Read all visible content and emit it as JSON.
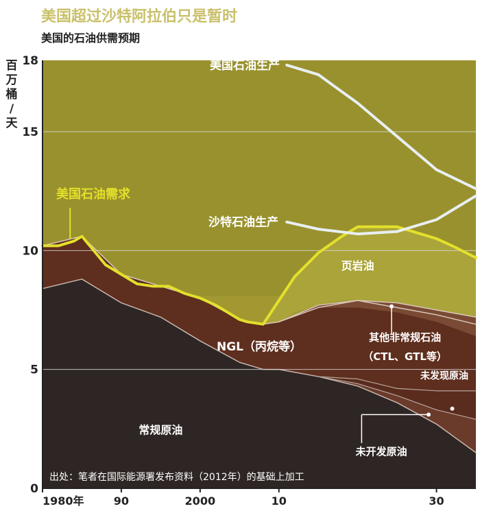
{
  "title": "美国超过沙特阿拉伯只是暂时",
  "subtitle": "美国的石油供需预期",
  "colors": {
    "demand": "#e3e02c",
    "shale": "#aaa43a",
    "ngl": "#5e2e1e",
    "crude": "#2e2624",
    "production_line": "#e8eef2",
    "gridline": "#d8d8d8"
  },
  "chart_data": {
    "type": "area",
    "title": "美国超过沙特阿拉伯只是暂时",
    "subtitle": "美国的石油供需预期",
    "ylabel": "百万桶/天",
    "xlabel": "",
    "xlim": [
      1980,
      2035
    ],
    "ylim": [
      0,
      18
    ],
    "y_ticks": [
      0,
      5,
      10,
      15,
      18
    ],
    "x_ticks": [
      {
        "value": 1980,
        "label": "1980年"
      },
      {
        "value": 1990,
        "label": "90"
      },
      {
        "value": 2000,
        "label": "2000"
      },
      {
        "value": 2010,
        "label": "10"
      },
      {
        "value": 2030,
        "label": "30"
      }
    ],
    "grid": true,
    "source": "出处：笔者在国际能源署发布资料（2012年）的基础上加工",
    "series": [
      {
        "name": "美国石油需求",
        "type": "line",
        "x": [
          1980,
          1982,
          1984,
          1985,
          1986,
          1988,
          1990,
          1992,
          1994,
          1996,
          1998,
          2000,
          2002,
          2004,
          2005,
          2006,
          2008,
          2010,
          2012,
          2015,
          2018,
          2020,
          2022,
          2025,
          2028,
          2030,
          2032,
          2035
        ],
        "values": [
          10.2,
          10.2,
          10.4,
          10.6,
          10.2,
          9.4,
          9.0,
          8.6,
          8.5,
          8.5,
          8.2,
          8.0,
          7.7,
          7.3,
          7.1,
          7.0,
          6.9,
          7.9,
          8.9,
          9.9,
          10.6,
          11.0,
          11.0,
          11.0,
          10.7,
          10.5,
          10.2,
          9.7
        ]
      },
      {
        "name": "美国石油生产",
        "type": "line",
        "x": [
          2011,
          2015,
          2020,
          2025,
          2030,
          2035
        ],
        "values": [
          17.8,
          17.4,
          16.2,
          14.8,
          13.4,
          12.6
        ]
      },
      {
        "name": "沙特石油生产",
        "type": "line",
        "x": [
          2011,
          2015,
          2020,
          2025,
          2030,
          2035
        ],
        "values": [
          11.2,
          10.9,
          10.7,
          10.8,
          11.3,
          12.3
        ]
      },
      {
        "name": "页岩油",
        "type": "area",
        "x": [
          2008,
          2010,
          2012,
          2015,
          2018,
          2020,
          2022,
          2025,
          2028,
          2030,
          2032,
          2035
        ],
        "lower": [
          6.9,
          7.0,
          7.4,
          7.7,
          7.9,
          7.9,
          7.8,
          7.5,
          7.4,
          7.3,
          7.1,
          6.9
        ],
        "upper": [
          6.9,
          7.9,
          8.9,
          9.9,
          10.6,
          11.0,
          11.0,
          11.0,
          10.7,
          10.5,
          10.2,
          9.7
        ]
      },
      {
        "name": "NGL（丙烷等）",
        "type": "area",
        "x": [
          1980,
          1985,
          1990,
          1995,
          2000,
          2005,
          2008,
          2010,
          2015,
          2020,
          2025,
          2030,
          2035
        ],
        "lower": [
          8.4,
          8.8,
          7.8,
          7.2,
          6.2,
          5.3,
          5.0,
          5.0,
          4.7,
          4.6,
          4.1,
          3.2,
          1.7
        ],
        "upper": [
          10.2,
          10.6,
          9.0,
          8.5,
          8.0,
          7.1,
          6.9,
          7.0,
          7.6,
          7.9,
          7.6,
          7.3,
          6.9
        ]
      },
      {
        "name": "其他非常规石油（CTL、GTL等）",
        "type": "area",
        "x": [
          2010,
          2015,
          2020,
          2025,
          2030,
          2035
        ],
        "lower": [
          7.0,
          7.6,
          7.6,
          7.4,
          7.0,
          6.4
        ],
        "upper": [
          7.0,
          7.7,
          7.9,
          7.8,
          7.5,
          7.2
        ]
      },
      {
        "name": "未发现原油",
        "type": "area",
        "x": [
          2015,
          2020,
          2025,
          2030,
          2035
        ],
        "lower": [
          4.7,
          4.4,
          3.9,
          3.3,
          2.9
        ],
        "upper": [
          4.7,
          4.6,
          4.2,
          4.1,
          4.1
        ]
      },
      {
        "name": "未开发原油",
        "type": "area",
        "x": [
          2015,
          2020,
          2025,
          2030,
          2035
        ],
        "lower": [
          4.7,
          4.3,
          3.6,
          2.7,
          1.5
        ],
        "upper": [
          4.7,
          4.4,
          3.9,
          3.3,
          2.9
        ]
      },
      {
        "name": "常规原油",
        "type": "area",
        "x": [
          1980,
          1985,
          1990,
          1995,
          2000,
          2005,
          2008,
          2010,
          2015,
          2020,
          2025,
          2030,
          2035
        ],
        "lower": [
          0,
          0,
          0,
          0,
          0,
          0,
          0,
          0,
          0,
          0,
          0,
          0,
          0
        ],
        "upper": [
          8.4,
          8.8,
          7.8,
          7.2,
          6.2,
          5.3,
          5.0,
          5.0,
          4.7,
          4.3,
          3.6,
          2.7,
          1.5
        ]
      }
    ]
  }
}
